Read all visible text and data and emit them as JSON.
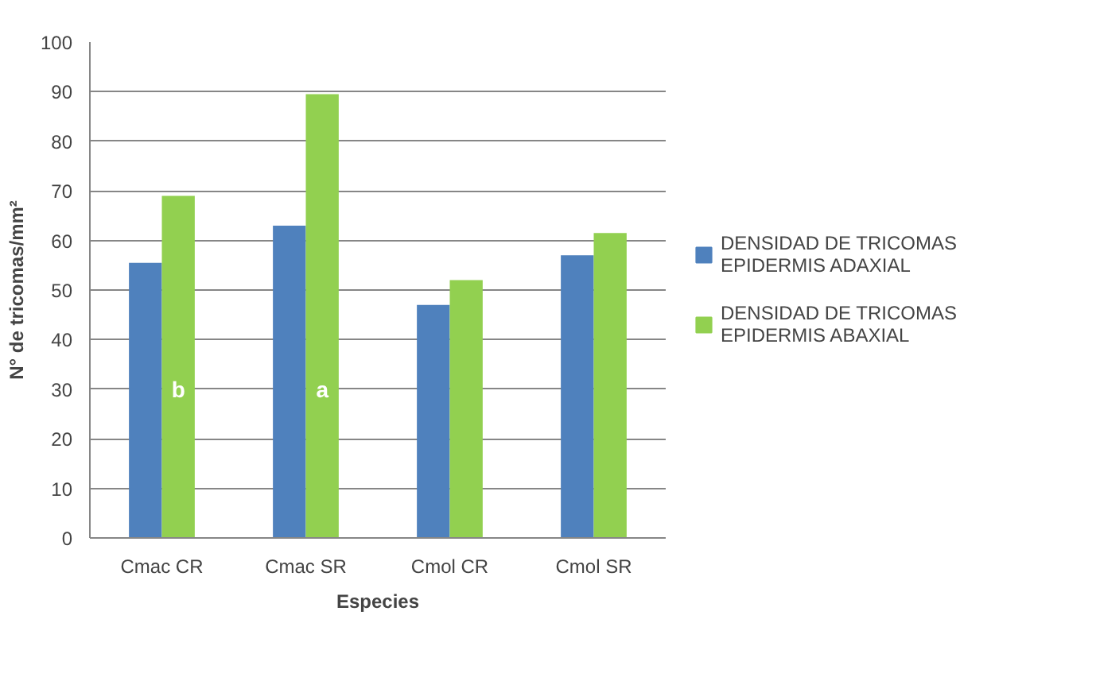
{
  "chart_data": {
    "type": "bar",
    "xlabel": "Especies",
    "ylabel": "N° de tricomas/mm²",
    "categories": [
      "Cmac CR",
      "Cmac SR",
      "Cmol CR",
      "Cmol SR"
    ],
    "series": [
      {
        "name": "DENSIDAD DE TRICOMAS EPIDERMIS ADAXIAL",
        "color": "#4f81bd",
        "values": [
          55.5,
          63,
          47,
          57
        ]
      },
      {
        "name": "DENSIDAD DE TRICOMAS EPIDERMIS ABAXIAL",
        "color": "#92d050",
        "values": [
          69,
          89.5,
          52,
          61.5
        ]
      }
    ],
    "ylim": [
      0,
      100
    ],
    "yticks": [
      0,
      10,
      20,
      30,
      40,
      50,
      60,
      70,
      80,
      90,
      100
    ],
    "grid": "y",
    "legend": "right",
    "annotations": [
      {
        "text": "b",
        "x": "Cmac CR",
        "y": 30
      },
      {
        "text": "a",
        "x": "Cmac SR",
        "y": 30
      }
    ]
  }
}
